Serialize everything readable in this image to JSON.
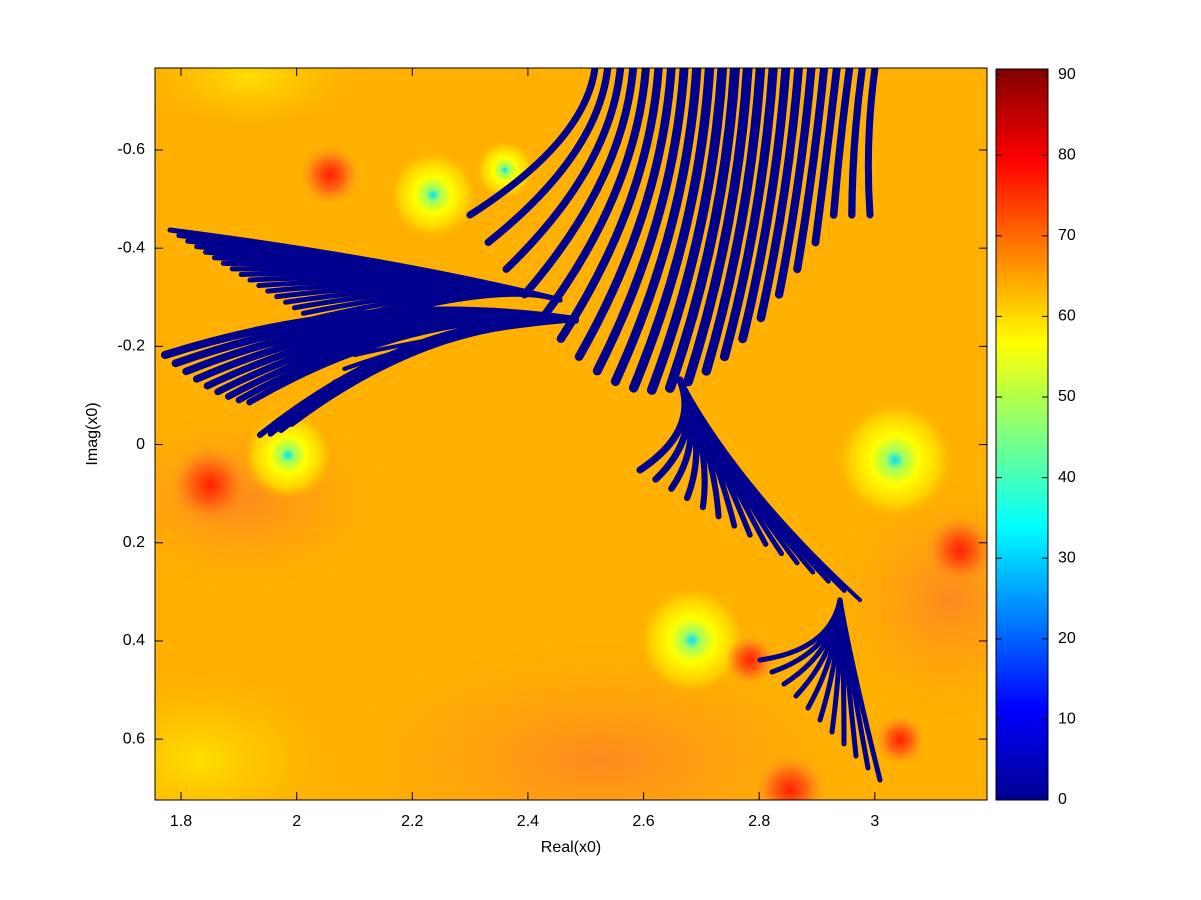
{
  "chart_data": {
    "type": "image",
    "colormap": "jet",
    "x_label": "Real(x0)",
    "y_label": "Imag(x0)",
    "xlim": [
      1.755,
      3.194
    ],
    "ylim": [
      -0.767,
      0.724
    ],
    "y_reversed": true,
    "xticks": [
      1.8,
      2,
      2.2,
      2.4,
      2.6,
      2.8,
      3
    ],
    "yticks": [
      -0.6,
      -0.4,
      -0.2,
      0,
      0.2,
      0.4,
      0.6
    ],
    "colorbar": {
      "clim": [
        0,
        90.7
      ],
      "ticks": [
        0,
        10,
        20,
        30,
        40,
        50,
        60,
        70,
        80,
        90
      ]
    }
  }
}
